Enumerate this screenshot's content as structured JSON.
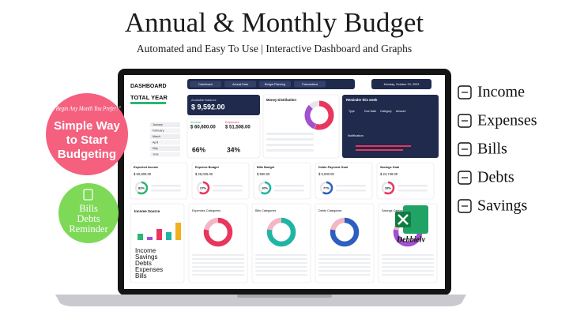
{
  "header": {
    "title": "Annual & Monthly Budget",
    "subtitle": "Automated and Easy To Use | Interactive Dashboard and Graphs"
  },
  "badges": {
    "quote": "“Begin Any Month You Prefer!”",
    "headline": [
      "Simple Way",
      "to Start",
      "Budgeting"
    ],
    "reminder": [
      "Bills",
      "Debts",
      "Reminder"
    ]
  },
  "features": [
    "Income",
    "Expenses",
    "Bills",
    "Debts",
    "Savings"
  ],
  "brand": "Debbielv",
  "dashboard": {
    "title": "DASHBOARD",
    "period": "TOTAL YEAR",
    "months": [
      "January",
      "February",
      "March",
      "April",
      "May",
      "June"
    ],
    "nav": [
      "Dashboard",
      "Annual Data",
      "Budget Planning",
      "Transactions"
    ],
    "date": "Monday, October 23, 2023",
    "balance": {
      "label": "Available Balance",
      "value": "$ 9,592.00"
    },
    "income": {
      "label": "Income",
      "value": "$ 60,600.00"
    },
    "expenses": {
      "label": "Expenses",
      "value": "$ 51,508.00"
    },
    "spent": [
      "66%",
      "34%"
    ],
    "money_distribution": "Money Distribution",
    "reminder": "Reminder this week",
    "reminder_cols": [
      "Type",
      "Due Date",
      "Category",
      "Amount"
    ],
    "notification": "Notification",
    "cards": [
      {
        "title": "Expected Income",
        "value": "$ 60,600.00",
        "pct": "82%"
      },
      {
        "title": "Expense Budget",
        "value": "$ 26,025.00",
        "pct": "27%"
      },
      {
        "title": "Bills Budget",
        "value": "$ 500.00",
        "pct": "10%"
      },
      {
        "title": "Debts Payment Goal",
        "value": "$ 5,000.00",
        "pct": "77%"
      },
      {
        "title": "Savings Goal",
        "value": "$ 24,748.00",
        "pct": "33%"
      }
    ],
    "income_source": "Income Source",
    "categories": [
      "Expenses Categories",
      "Bills Categories",
      "Debts Categories",
      "Savings Categories"
    ],
    "legend": [
      "Income",
      "Savings",
      "Debts",
      "Expenses",
      "Bills"
    ]
  }
}
